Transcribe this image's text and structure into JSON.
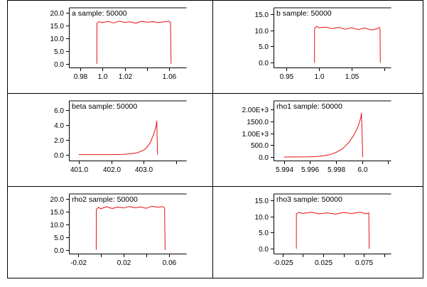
{
  "chart_data": [
    {
      "type": "line",
      "title": "a sample: 50000",
      "xlim": [
        0.97,
        1.075
      ],
      "ylim": [
        -1.5,
        21.5
      ],
      "xticks": [
        0.98,
        1.0,
        1.02,
        1.06
      ],
      "xtick_labels": [
        "0.98",
        "1.0",
        "1.02",
        "1.06"
      ],
      "xticks_unlabeled": [
        1.04,
        1.08
      ],
      "yticks": [
        0,
        5,
        10,
        15,
        20
      ],
      "ytick_labels": [
        "0.0",
        "5.0",
        "10.0",
        "15.0",
        "20.0"
      ],
      "series": [
        {
          "x": [
            0.995,
            0.9951,
            0.997,
            1.0,
            1.005,
            1.01,
            1.015,
            1.02,
            1.025,
            1.03,
            1.035,
            1.04,
            1.045,
            1.05,
            1.055,
            1.0595,
            1.061,
            1.0615
          ],
          "y": [
            0,
            16.0,
            16.6,
            16.2,
            16.7,
            16.1,
            16.8,
            16.3,
            16.5,
            16.0,
            16.7,
            16.4,
            16.6,
            16.2,
            16.5,
            16.8,
            16.3,
            0
          ]
        }
      ]
    },
    {
      "type": "line",
      "title": "b sample: 50000",
      "xlim": [
        0.93,
        1.11
      ],
      "ylim": [
        -1.5,
        16.5
      ],
      "xticks": [
        0.95,
        1.0,
        1.05
      ],
      "xtick_labels": [
        "0.95",
        "1.0",
        "1.05"
      ],
      "xticks_unlabeled": [
        1.1
      ],
      "yticks": [
        0,
        5,
        10,
        15
      ],
      "ytick_labels": [
        "0.0",
        "5.0",
        "10.0",
        "15.0"
      ],
      "series": [
        {
          "x": [
            0.993,
            0.9931,
            0.996,
            1.0,
            1.01,
            1.02,
            1.03,
            1.04,
            1.05,
            1.06,
            1.07,
            1.08,
            1.09,
            1.092,
            1.0935,
            1.094
          ],
          "y": [
            0,
            10.5,
            11.2,
            10.8,
            11.0,
            10.5,
            10.9,
            10.3,
            10.8,
            10.2,
            10.7,
            10.1,
            10.5,
            10.9,
            10.4,
            0
          ]
        }
      ]
    },
    {
      "type": "line",
      "title": "beta sample: 50000",
      "xlim": [
        400.7,
        404.3
      ],
      "ylim": [
        -0.8,
        7.0
      ],
      "xticks": [
        401.0,
        402.0,
        403.0
      ],
      "xtick_labels": [
        "401.0",
        "402.0",
        "403.0"
      ],
      "xticks_unlabeled": [
        404.0
      ],
      "yticks": [
        0,
        2,
        4,
        6
      ],
      "ytick_labels": [
        "0.0",
        "2.0",
        "4.0",
        "6.0"
      ],
      "series": [
        {
          "x": [
            401.0,
            401.5,
            402.0,
            402.3,
            402.6,
            402.8,
            403.0,
            403.1,
            403.2,
            403.3,
            403.37,
            403.4,
            403.42
          ],
          "y": [
            0,
            0,
            0,
            0.02,
            0.1,
            0.25,
            0.6,
            1.0,
            1.6,
            2.7,
            3.7,
            4.5,
            0
          ]
        }
      ]
    },
    {
      "type": "line",
      "title": "rho1 sample: 50000",
      "xlim": [
        5.9932,
        6.0022
      ],
      "ylim": [
        -150,
        2300
      ],
      "xticks": [
        5.994,
        5.996,
        5.998,
        6.0
      ],
      "xtick_labels": [
        "5.994",
        "5.996",
        "5.998",
        "6.0"
      ],
      "xticks_unlabeled": [
        6.002
      ],
      "yticks": [
        0,
        500,
        1000,
        1500,
        2000
      ],
      "ytick_labels": [
        "0.0",
        "500.0",
        "1.00E+3",
        "1500.0",
        "2.00E+3"
      ],
      "series": [
        {
          "x": [
            5.994,
            5.995,
            5.996,
            5.9965,
            5.997,
            5.9975,
            5.998,
            5.9985,
            5.999,
            5.9994,
            5.9997,
            5.9999,
            5.99995,
            6.00005
          ],
          "y": [
            0,
            2,
            8,
            20,
            45,
            95,
            190,
            350,
            620,
            950,
            1300,
            1650,
            1850,
            0
          ]
        }
      ]
    },
    {
      "type": "line",
      "title": "rho2 sample: 50000",
      "xlim": [
        -0.028,
        0.075
      ],
      "ylim": [
        -1.5,
        21.5
      ],
      "xticks": [
        -0.02,
        0.02,
        0.06
      ],
      "xtick_labels": [
        "-0.02",
        "0.02",
        "0.06"
      ],
      "xticks_unlabeled": [
        0.0,
        0.04
      ],
      "yticks": [
        0,
        5,
        10,
        15,
        20
      ],
      "ytick_labels": [
        "0.0",
        "5.0",
        "10.0",
        "15.0",
        "20.0"
      ],
      "series": [
        {
          "x": [
            -0.004,
            -0.0039,
            -0.002,
            0.0,
            0.005,
            0.01,
            0.015,
            0.02,
            0.025,
            0.03,
            0.035,
            0.04,
            0.045,
            0.05,
            0.054,
            0.056,
            0.0565
          ],
          "y": [
            0,
            16.0,
            16.8,
            16.2,
            17.0,
            16.3,
            16.9,
            16.5,
            17.1,
            16.6,
            16.9,
            16.4,
            17.2,
            16.8,
            17.1,
            16.6,
            0
          ]
        }
      ]
    },
    {
      "type": "line",
      "title": "rho3 sample: 50000",
      "xlim": [
        -0.036,
        0.108
      ],
      "ylim": [
        -1.5,
        16.5
      ],
      "xticks": [
        -0.025,
        0.025,
        0.075
      ],
      "xtick_labels": [
        "-0.025",
        "0.025",
        "0.075"
      ],
      "xticks_unlabeled": [
        0.0,
        0.05,
        0.1
      ],
      "yticks": [
        0,
        5,
        10,
        15
      ],
      "ytick_labels": [
        "0.0",
        "5.0",
        "10.0",
        "15.0"
      ],
      "series": [
        {
          "x": [
            -0.008,
            -0.0079,
            -0.005,
            0.0,
            0.01,
            0.02,
            0.03,
            0.04,
            0.05,
            0.06,
            0.07,
            0.078,
            0.081,
            0.0815
          ],
          "y": [
            0,
            10.8,
            11.2,
            10.9,
            11.3,
            10.8,
            11.1,
            10.7,
            11.2,
            10.9,
            11.3,
            10.8,
            11.1,
            0
          ]
        }
      ]
    }
  ]
}
